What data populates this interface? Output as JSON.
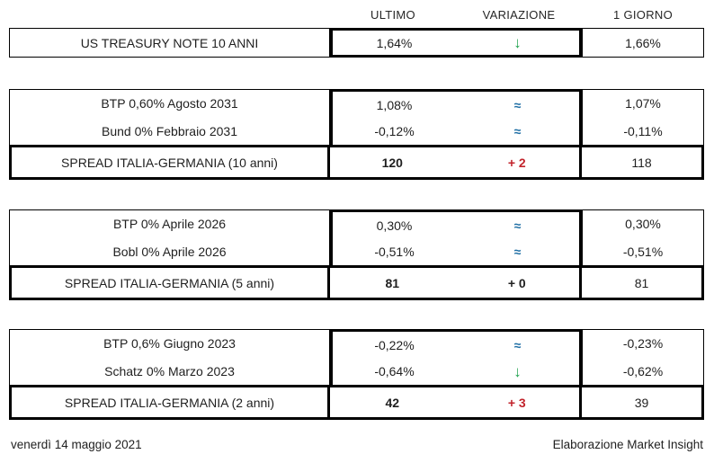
{
  "colors": {
    "green": "#1fa24e",
    "blue": "#1f6fa5",
    "red": "#c2232b",
    "text": "#1f1f1f",
    "border": "#000000"
  },
  "header": {
    "columns": [
      "ULTIMO",
      "VARIAZIONE",
      "1 GIORNO"
    ]
  },
  "sections": [
    {
      "rows": [
        {
          "label": "US TREASURY NOTE 10 ANNI",
          "ultimo": "1,64%",
          "variazione": "↓",
          "variazione_style": "green-down",
          "variazione_meaning": "down-arrow",
          "giorno": "1,66%"
        }
      ]
    },
    {
      "rows": [
        {
          "label": "BTP 0,60% Agosto 2031",
          "ultimo": "1,08%",
          "variazione": "≈",
          "variazione_style": "blue-approx",
          "variazione_meaning": "unchanged",
          "giorno": "1,07%"
        },
        {
          "label": "Bund 0% Febbraio 2031",
          "ultimo": "-0,12%",
          "variazione": "≈",
          "variazione_style": "blue-approx",
          "variazione_meaning": "unchanged",
          "giorno": "-0,11%"
        },
        {
          "label": "SPREAD ITALIA-GERMANIA (10 anni)",
          "ultimo": "120",
          "variazione": "+ 2",
          "variazione_style": "red-bold",
          "variazione_meaning": "increase",
          "giorno": "118",
          "is_spread": true
        }
      ]
    },
    {
      "rows": [
        {
          "label": "BTP 0% Aprile 2026",
          "ultimo": "0,30%",
          "variazione": "≈",
          "variazione_style": "blue-approx",
          "variazione_meaning": "unchanged",
          "giorno": "0,30%"
        },
        {
          "label": "Bobl 0% Aprile 2026",
          "ultimo": "-0,51%",
          "variazione": "≈",
          "variazione_style": "blue-approx",
          "variazione_meaning": "unchanged",
          "giorno": "-0,51%"
        },
        {
          "label": "SPREAD ITALIA-GERMANIA (5 anni)",
          "ultimo": "81",
          "variazione": "+ 0",
          "variazione_style": "black-bold",
          "variazione_meaning": "no-change",
          "giorno": "81",
          "is_spread": true
        }
      ]
    },
    {
      "rows": [
        {
          "label": "BTP 0,6% Giugno 2023",
          "ultimo": "-0,22%",
          "variazione": "≈",
          "variazione_style": "blue-approx",
          "variazione_meaning": "unchanged",
          "giorno": "-0,23%"
        },
        {
          "label": "Schatz 0% Marzo 2023",
          "ultimo": "-0,64%",
          "variazione": "↓",
          "variazione_style": "green-down",
          "variazione_meaning": "down-arrow",
          "giorno": "-0,62%"
        },
        {
          "label": "SPREAD ITALIA-GERMANIA (2 anni)",
          "ultimo": "42",
          "variazione": "+ 3",
          "variazione_style": "red-bold",
          "variazione_meaning": "increase",
          "giorno": "39",
          "is_spread": true
        }
      ]
    }
  ],
  "footer": {
    "date": "venerdì 14 maggio 2021",
    "credit": "Elaborazione Market Insight"
  }
}
